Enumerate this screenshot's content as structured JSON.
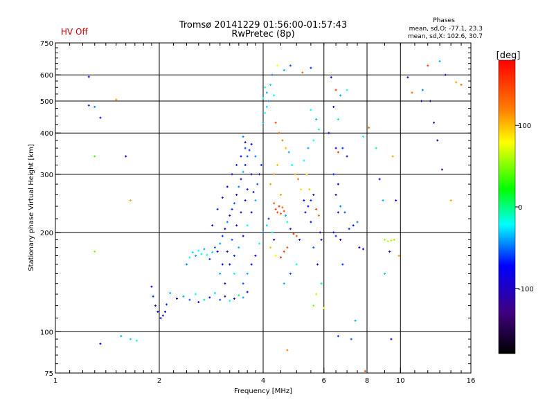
{
  "header": {
    "title": "Tromsø 20141229 01:56:00-01:57:43",
    "subtitle": "RwPretec (8p)",
    "status": "HV Off",
    "status_color": "#cc0000",
    "stats_title": "Phases",
    "stats_line1": "mean, sd,O: -77.1, 23.3",
    "stats_line2": "mean, sd,X: 102.6, 30.7"
  },
  "colorbar": {
    "label": "[deg]",
    "ticks": [
      "100",
      "0",
      "-100"
    ],
    "tick_values": [
      100,
      0,
      -100
    ],
    "range": [
      -180,
      180
    ],
    "colormap": "rainbow (black-purple-blue-cyan-green-yellow-orange-red)"
  },
  "chart_data": {
    "type": "scatter",
    "xlabel": "Frequency [MHz]",
    "ylabel": "Stationary phase Virtual Height [km]",
    "xscale": "log2",
    "yscale": "log",
    "xlim": [
      1,
      16
    ],
    "ylim": [
      75,
      750
    ],
    "xticks": [
      1,
      2,
      4,
      6,
      8,
      10,
      16
    ],
    "xtick_labels": [
      "1",
      "2",
      "4",
      "6",
      "8",
      "10",
      "16"
    ],
    "yticks": [
      75,
      100,
      200,
      300,
      400,
      500,
      600,
      750
    ],
    "ytick_labels": [
      "75",
      "100",
      "200",
      "300",
      "400",
      "500",
      "600",
      "750"
    ],
    "grid": true,
    "marker_color": "phase (deg), colorbar -180..180",
    "series": [
      {
        "points": [
          [
            1.25,
            592,
            -100
          ],
          [
            1.25,
            485,
            -90
          ],
          [
            1.3,
            480,
            -70
          ],
          [
            1.35,
            445,
            -110
          ],
          [
            1.3,
            340,
            20
          ],
          [
            1.6,
            340,
            -110
          ],
          [
            1.65,
            250,
            110
          ],
          [
            1.5,
            505,
            110
          ],
          [
            1.3,
            175,
            40
          ],
          [
            1.35,
            92,
            -100
          ],
          [
            1.55,
            97,
            -60
          ],
          [
            1.65,
            95,
            -50
          ],
          [
            1.72,
            94,
            -40
          ],
          [
            1.9,
            137,
            -110
          ],
          [
            1.92,
            128,
            -90
          ],
          [
            1.95,
            120,
            -120
          ],
          [
            1.98,
            115,
            -100
          ],
          [
            2.02,
            110,
            -110
          ],
          [
            2.05,
            112,
            -120
          ],
          [
            2.08,
            115,
            -100
          ],
          [
            2.1,
            121,
            -90
          ],
          [
            2.15,
            131,
            -60
          ],
          [
            2.25,
            126,
            -110
          ],
          [
            2.35,
            128,
            -60
          ],
          [
            2.45,
            125,
            -80
          ],
          [
            2.55,
            130,
            -40
          ],
          [
            2.6,
            123,
            -110
          ],
          [
            2.7,
            125,
            -20
          ],
          [
            2.8,
            127,
            -100
          ],
          [
            2.9,
            131,
            -50
          ],
          [
            3.0,
            125,
            -80
          ],
          [
            3.1,
            128,
            -120
          ],
          [
            3.2,
            124,
            -40
          ],
          [
            3.3,
            126,
            -100
          ],
          [
            3.4,
            129,
            -20
          ],
          [
            3.5,
            127,
            -60
          ],
          [
            3.6,
            132,
            -110
          ],
          [
            2.4,
            160,
            -70
          ],
          [
            2.45,
            168,
            -40
          ],
          [
            2.5,
            174,
            -50
          ],
          [
            2.55,
            170,
            -60
          ],
          [
            2.6,
            176,
            -40
          ],
          [
            2.65,
            172,
            -30
          ],
          [
            2.7,
            178,
            -60
          ],
          [
            2.75,
            171,
            -40
          ],
          [
            2.8,
            166,
            -90
          ],
          [
            2.85,
            174,
            -50
          ],
          [
            2.9,
            180,
            -80
          ],
          [
            2.95,
            175,
            -100
          ],
          [
            3.0,
            185,
            -60
          ],
          [
            3.05,
            195,
            -90
          ],
          [
            3.1,
            205,
            -110
          ],
          [
            3.15,
            215,
            -70
          ],
          [
            3.2,
            225,
            -120
          ],
          [
            3.25,
            235,
            -90
          ],
          [
            3.3,
            245,
            -80
          ],
          [
            3.35,
            260,
            -110
          ],
          [
            3.4,
            275,
            -70
          ],
          [
            3.45,
            290,
            -120
          ],
          [
            3.5,
            305,
            -60
          ],
          [
            3.55,
            320,
            -110
          ],
          [
            3.6,
            340,
            -80
          ],
          [
            3.65,
            355,
            -90
          ],
          [
            3.7,
            370,
            -100
          ],
          [
            3.5,
            390,
            -70
          ],
          [
            3.55,
            375,
            -110
          ],
          [
            3.2,
            160,
            -100
          ],
          [
            3.3,
            170,
            -90
          ],
          [
            3.4,
            180,
            -60
          ],
          [
            3.5,
            195,
            -110
          ],
          [
            3.6,
            210,
            -40
          ],
          [
            3.7,
            230,
            -100
          ],
          [
            3.8,
            250,
            -60
          ],
          [
            3.75,
            265,
            -110
          ],
          [
            3.85,
            280,
            -80
          ],
          [
            3.9,
            300,
            -120
          ],
          [
            3.95,
            320,
            -90
          ],
          [
            3.8,
            340,
            -70
          ],
          [
            3.7,
            300,
            -110
          ],
          [
            3.6,
            270,
            -100
          ],
          [
            3.55,
            250,
            -110
          ],
          [
            3.45,
            230,
            -120
          ],
          [
            3.35,
            210,
            -110
          ],
          [
            3.25,
            190,
            -80
          ],
          [
            3.15,
            175,
            -120
          ],
          [
            3.05,
            160,
            -100
          ],
          [
            3.0,
            150,
            -60
          ],
          [
            3.1,
            140,
            -110
          ],
          [
            3.3,
            150,
            -40
          ],
          [
            3.5,
            140,
            -80
          ],
          [
            3.6,
            150,
            -60
          ],
          [
            3.7,
            160,
            -100
          ],
          [
            3.8,
            170,
            -110
          ],
          [
            3.9,
            185,
            -40
          ],
          [
            4.0,
            200,
            -80
          ],
          [
            2.85,
            210,
            -110
          ],
          [
            2.95,
            235,
            -90
          ],
          [
            3.05,
            255,
            -120
          ],
          [
            3.15,
            275,
            -100
          ],
          [
            3.25,
            300,
            -110
          ],
          [
            3.35,
            320,
            -90
          ],
          [
            3.45,
            340,
            -100
          ],
          [
            3.55,
            360,
            -80
          ],
          [
            4.0,
            430,
            -60
          ],
          [
            4.05,
            460,
            -40
          ],
          [
            4.1,
            480,
            -50
          ],
          [
            4.15,
            500,
            -70
          ],
          [
            4.0,
            510,
            -40
          ],
          [
            4.1,
            530,
            -60
          ],
          [
            4.2,
            560,
            -50
          ],
          [
            4.25,
            600,
            -70
          ],
          [
            4.05,
            550,
            -30
          ],
          [
            4.3,
            520,
            -40
          ],
          [
            4.4,
            640,
            80
          ],
          [
            4.6,
            620,
            -60
          ],
          [
            4.8,
            640,
            -80
          ],
          [
            5.2,
            610,
            130
          ],
          [
            5.5,
            630,
            -90
          ],
          [
            4.35,
            430,
            150
          ],
          [
            4.45,
            400,
            140
          ],
          [
            4.55,
            380,
            120
          ],
          [
            4.65,
            360,
            100
          ],
          [
            4.75,
            350,
            -60
          ],
          [
            4.85,
            320,
            -40
          ],
          [
            4.95,
            300,
            110
          ],
          [
            5.05,
            290,
            130
          ],
          [
            5.15,
            270,
            90
          ],
          [
            5.25,
            250,
            -100
          ],
          [
            4.3,
            245,
            140
          ],
          [
            4.35,
            235,
            150
          ],
          [
            4.4,
            230,
            145
          ],
          [
            4.45,
            240,
            160
          ],
          [
            4.5,
            228,
            140
          ],
          [
            4.55,
            238,
            130
          ],
          [
            4.6,
            232,
            150
          ],
          [
            4.65,
            225,
            -60
          ],
          [
            4.7,
            215,
            -30
          ],
          [
            4.8,
            205,
            -90
          ],
          [
            4.9,
            198,
            160
          ],
          [
            5.0,
            195,
            140
          ],
          [
            5.1,
            190,
            -120
          ],
          [
            4.6,
            175,
            150
          ],
          [
            4.5,
            168,
            160
          ],
          [
            4.7,
            180,
            140
          ],
          [
            5.3,
            230,
            -100
          ],
          [
            5.4,
            240,
            -110
          ],
          [
            5.5,
            250,
            -90
          ],
          [
            5.6,
            260,
            -120
          ],
          [
            5.7,
            235,
            150
          ],
          [
            5.8,
            225,
            130
          ],
          [
            5.85,
            200,
            -130
          ],
          [
            5.9,
            190,
            -110
          ],
          [
            5.75,
            160,
            -100
          ],
          [
            5.6,
            180,
            -80
          ],
          [
            5.5,
            215,
            -110
          ],
          [
            5.45,
            270,
            100
          ],
          [
            5.35,
            300,
            90
          ],
          [
            5.25,
            330,
            -40
          ],
          [
            5.4,
            360,
            -60
          ],
          [
            5.6,
            380,
            -40
          ],
          [
            5.8,
            410,
            -30
          ],
          [
            5.7,
            440,
            -60
          ],
          [
            5.5,
            470,
            -40
          ],
          [
            4.2,
            280,
            110
          ],
          [
            4.3,
            300,
            120
          ],
          [
            4.4,
            320,
            100
          ],
          [
            4.5,
            260,
            110
          ],
          [
            4.25,
            200,
            -30
          ],
          [
            4.3,
            190,
            -120
          ],
          [
            4.2,
            180,
            100
          ],
          [
            4.35,
            170,
            80
          ],
          [
            4.1,
            210,
            -50
          ],
          [
            4.15,
            220,
            -90
          ],
          [
            4.6,
            140,
            -60
          ],
          [
            4.8,
            150,
            -80
          ],
          [
            5.0,
            160,
            -40
          ],
          [
            5.6,
            120,
            40
          ],
          [
            5.7,
            130,
            60
          ],
          [
            4.7,
            88,
            120
          ],
          [
            5.9,
            140,
            -20
          ],
          [
            6.0,
            118,
            80
          ],
          [
            6.3,
            590,
            -100
          ],
          [
            6.5,
            540,
            150
          ],
          [
            6.7,
            520,
            -60
          ],
          [
            7.0,
            540,
            -40
          ],
          [
            6.4,
            480,
            -120
          ],
          [
            6.6,
            440,
            -20
          ],
          [
            6.2,
            400,
            -100
          ],
          [
            6.5,
            360,
            -110
          ],
          [
            6.6,
            350,
            150
          ],
          [
            6.8,
            360,
            -90
          ],
          [
            7.0,
            340,
            -120
          ],
          [
            6.4,
            300,
            -90
          ],
          [
            6.6,
            280,
            -100
          ],
          [
            6.5,
            260,
            -120
          ],
          [
            6.7,
            240,
            -70
          ],
          [
            6.6,
            230,
            -110
          ],
          [
            6.4,
            200,
            -100
          ],
          [
            6.5,
            195,
            -90
          ],
          [
            6.7,
            190,
            -120
          ],
          [
            6.9,
            230,
            -80
          ],
          [
            7.1,
            205,
            -90
          ],
          [
            7.3,
            210,
            -100
          ],
          [
            7.5,
            215,
            -70
          ],
          [
            7.6,
            180,
            -100
          ],
          [
            7.8,
            178,
            -110
          ],
          [
            6.8,
            160,
            -90
          ],
          [
            6.6,
            97,
            -90
          ],
          [
            7.4,
            108,
            -60
          ],
          [
            7.2,
            95,
            -80
          ],
          [
            7.9,
            76,
            150
          ],
          [
            7.8,
            390,
            -40
          ],
          [
            8.1,
            415,
            130
          ],
          [
            8.5,
            360,
            -30
          ],
          [
            8.7,
            290,
            -100
          ],
          [
            8.9,
            250,
            -60
          ],
          [
            9.0,
            190,
            50
          ],
          [
            9.2,
            188,
            60
          ],
          [
            9.4,
            189,
            55
          ],
          [
            9.6,
            190,
            50
          ],
          [
            9.3,
            175,
            -120
          ],
          [
            9.0,
            150,
            -50
          ],
          [
            9.5,
            340,
            110
          ],
          [
            9.7,
            250,
            -100
          ],
          [
            9.4,
            95,
            -100
          ],
          [
            10.5,
            590,
            -110
          ],
          [
            10.8,
            530,
            130
          ],
          [
            11.5,
            500,
            -120
          ],
          [
            12.2,
            500,
            -150
          ],
          [
            12.5,
            430,
            -130
          ],
          [
            13.0,
            660,
            -60
          ],
          [
            12.0,
            640,
            150
          ],
          [
            13.5,
            600,
            -110
          ],
          [
            14.5,
            570,
            110
          ],
          [
            15.0,
            560,
            130
          ],
          [
            12.8,
            380,
            -130
          ],
          [
            13.2,
            310,
            -140
          ],
          [
            14.0,
            250,
            110
          ],
          [
            11.6,
            540,
            -70
          ],
          [
            9.9,
            170,
            110
          ]
        ]
      }
    ]
  }
}
